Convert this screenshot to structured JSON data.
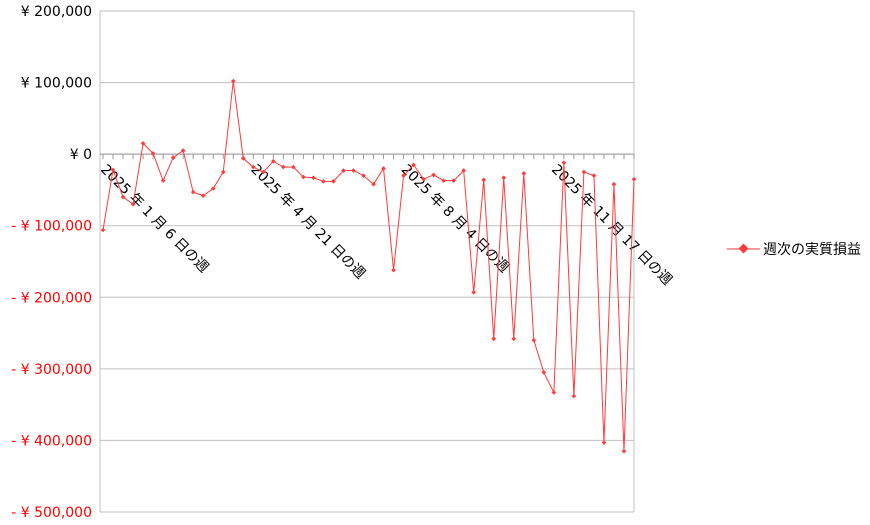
{
  "colors": {
    "series": "#ff3b3b",
    "grid": "#c0c0c0",
    "axis": "#9a9a9a",
    "positive_label": "#000000",
    "negative_label": "#ff0000"
  },
  "chart_data": {
    "type": "line",
    "ylim": [
      -500000,
      200000
    ],
    "ytick_step": 100000,
    "grid": true,
    "legend_position": "right",
    "ytick_labels": [
      {
        "value": 200000,
        "label": "¥ 200,000"
      },
      {
        "value": 100000,
        "label": "¥ 100,000"
      },
      {
        "value": 0,
        "label": "¥ 0"
      },
      {
        "value": -100000,
        "label": "- ¥ 100,000"
      },
      {
        "value": -200000,
        "label": "- ¥ 200,000"
      },
      {
        "value": -300000,
        "label": "- ¥ 300,000"
      },
      {
        "value": -400000,
        "label": "- ¥ 400,000"
      },
      {
        "value": -500000,
        "label": "- ¥ 500,000"
      }
    ],
    "xtick_labels": [
      {
        "index": 0,
        "label": "2025 年 1 月 6 日の週"
      },
      {
        "index": 15,
        "label": "2025 年 4 月 21 日の週"
      },
      {
        "index": 30,
        "label": "2025 年 8 月 4 日の週"
      },
      {
        "index": 45,
        "label": "2025 年 11 月 17 日の週"
      }
    ],
    "series": [
      {
        "name": "週次の実質損益",
        "values": [
          -106000,
          -22000,
          -60000,
          -70000,
          15000,
          1000,
          -37000,
          -5000,
          5000,
          -53000,
          -58000,
          -48000,
          -25000,
          102000,
          -6000,
          -18000,
          -25000,
          -10000,
          -18000,
          -18000,
          -32000,
          -33000,
          -38000,
          -38000,
          -23000,
          -23000,
          -30000,
          -42000,
          -20000,
          -162000,
          -30000,
          -15000,
          -35000,
          -29000,
          -37000,
          -37000,
          -23000,
          -193000,
          -36000,
          -258000,
          -33000,
          -258000,
          -27000,
          -260000,
          -305000,
          -333000,
          -12000,
          -338000,
          -25000,
          -30000,
          -403000,
          -42000,
          -415000,
          -35000
        ]
      }
    ]
  }
}
